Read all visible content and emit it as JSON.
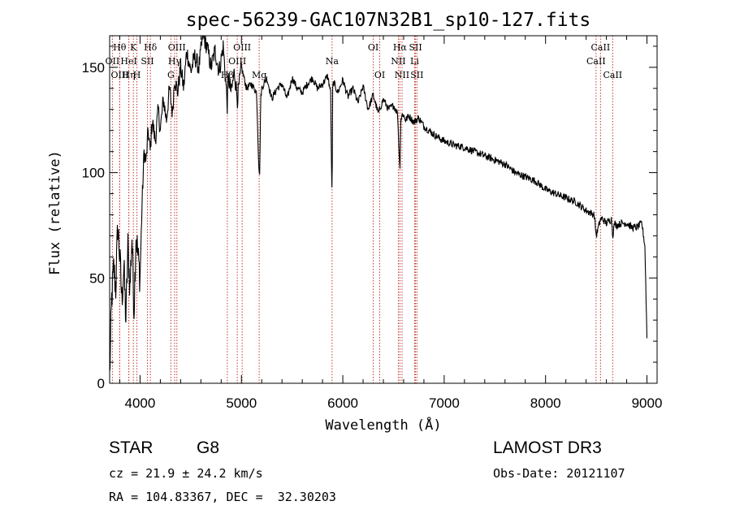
{
  "chart_data": {
    "type": "line",
    "title": "spec-56239-GAC107N32B1_sp10-127.fits",
    "xlabel": "Wavelength (Å)",
    "ylabel": "Flux (relative)",
    "xlim": [
      3700,
      9100
    ],
    "ylim": [
      0,
      165
    ],
    "xticks": [
      4000,
      5000,
      6000,
      7000,
      8000,
      9000
    ],
    "yticks": [
      0,
      50,
      100,
      150
    ],
    "series": [
      {
        "name": "flux",
        "x": [
          3700,
          3720,
          3740,
          3760,
          3780,
          3800,
          3820,
          3840,
          3860,
          3880,
          3900,
          3920,
          3940,
          3960,
          3980,
          4000,
          4020,
          4040,
          4060,
          4080,
          4100,
          4120,
          4150,
          4180,
          4200,
          4230,
          4260,
          4290,
          4320,
          4340,
          4370,
          4400,
          4430,
          4460,
          4500,
          4540,
          4580,
          4620,
          4660,
          4700,
          4740,
          4780,
          4820,
          4850,
          4860,
          4870,
          4900,
          4930,
          4960,
          5000,
          5050,
          5100,
          5150,
          5170,
          5180,
          5190,
          5200,
          5250,
          5300,
          5350,
          5400,
          5450,
          5500,
          5550,
          5600,
          5650,
          5700,
          5750,
          5800,
          5850,
          5880,
          5890,
          5895,
          5900,
          5910,
          5950,
          6000,
          6050,
          6100,
          6150,
          6200,
          6250,
          6300,
          6350,
          6400,
          6450,
          6500,
          6540,
          6555,
          6563,
          6570,
          6590,
          6620,
          6650,
          6700,
          6750,
          6800,
          6900,
          7000,
          7100,
          7200,
          7300,
          7400,
          7500,
          7600,
          7700,
          7800,
          7900,
          8000,
          8100,
          8200,
          8300,
          8400,
          8480,
          8500,
          8542,
          8560,
          8600,
          8650,
          8662,
          8680,
          8700,
          8750,
          8800,
          8850,
          8900,
          8950,
          8980,
          9000
        ],
        "y": [
          3,
          40,
          55,
          45,
          75,
          60,
          40,
          55,
          30,
          65,
          45,
          70,
          35,
          72,
          60,
          50,
          85,
          110,
          105,
          120,
          110,
          125,
          115,
          130,
          120,
          135,
          125,
          140,
          128,
          145,
          138,
          150,
          140,
          158,
          148,
          155,
          150,
          165,
          160,
          150,
          158,
          148,
          160,
          140,
          132,
          145,
          138,
          148,
          135,
          150,
          140,
          142,
          138,
          105,
          98,
          135,
          140,
          145,
          135,
          140,
          142,
          135,
          145,
          140,
          138,
          142,
          145,
          140,
          142,
          146,
          138,
          95,
          92,
          140,
          143,
          138,
          144,
          136,
          140,
          133,
          141,
          130,
          137,
          128,
          135,
          130,
          132,
          128,
          110,
          100,
          125,
          128,
          125,
          127,
          124,
          126,
          122,
          118,
          115,
          113,
          112,
          110,
          108,
          106,
          104,
          100,
          98,
          96,
          92,
          90,
          88,
          86,
          82,
          80,
          70,
          78,
          78,
          76,
          78,
          70,
          76,
          75,
          76,
          76,
          74,
          74,
          76,
          65,
          22
        ]
      }
    ],
    "lines_top": [
      {
        "label": "Hθ",
        "w": 3798,
        "row": 0
      },
      {
        "label": "K",
        "w": 3934,
        "row": 0
      },
      {
        "label": "Hδ",
        "w": 4102,
        "row": 0
      },
      {
        "label": "OII",
        "w": 3727,
        "row": 1
      },
      {
        "label": "HeI",
        "w": 3889,
        "row": 1
      },
      {
        "label": "SII",
        "w": 4072,
        "row": 1
      },
      {
        "label": "OIII",
        "w": 3800,
        "row": 2
      },
      {
        "label": "Hη",
        "w": 3889,
        "row": 2
      },
      {
        "label": "H",
        "w": 3969,
        "row": 2
      },
      {
        "label": "OIII",
        "w": 4363,
        "row": 0
      },
      {
        "label": "Hγ",
        "w": 4341,
        "row": 1
      },
      {
        "label": "G",
        "w": 4304,
        "row": 2
      },
      {
        "label": "OIII",
        "w": 5007,
        "row": 0
      },
      {
        "label": "OIII",
        "w": 4959,
        "row": 1
      },
      {
        "label": "Hβ",
        "w": 4861,
        "row": 2
      },
      {
        "label": "Mg",
        "w": 5175,
        "row": 2
      },
      {
        "label": "Na",
        "w": 5894,
        "row": 1
      },
      {
        "label": "OI",
        "w": 6300,
        "row": 0
      },
      {
        "label": "OI",
        "w": 6364,
        "row": 2
      },
      {
        "label": "Hα",
        "w": 6563,
        "row": 0
      },
      {
        "label": "SII",
        "w": 6717,
        "row": 0
      },
      {
        "label": "NII",
        "w": 6548,
        "row": 1
      },
      {
        "label": "Li",
        "w": 6708,
        "row": 1
      },
      {
        "label": "NII",
        "w": 6584,
        "row": 2
      },
      {
        "label": "SII",
        "w": 6731,
        "row": 2
      },
      {
        "label": "CaII",
        "w": 8542,
        "row": 0
      },
      {
        "label": "CaII",
        "w": 8498,
        "row": 1
      },
      {
        "label": "CaII",
        "w": 8662,
        "row": 2
      }
    ]
  },
  "info": {
    "class": "STAR",
    "subclass": "G8",
    "survey": "LAMOST DR3",
    "cz": "cz = 21.9 ± 24.2 km/s",
    "obs_date": "Obs-Date: 20121107",
    "coords": "RA = 104.83367, DEC =  32.30203"
  }
}
